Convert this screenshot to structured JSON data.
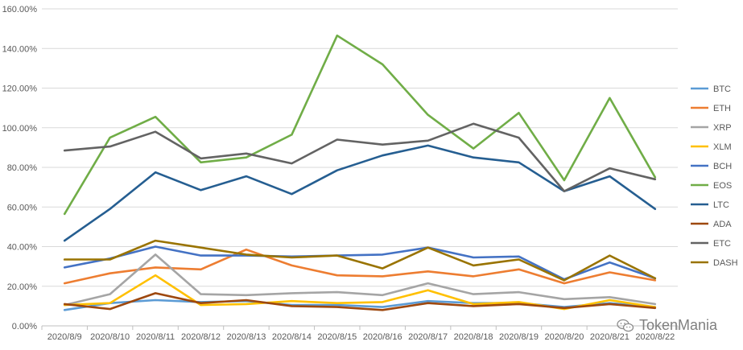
{
  "chart_data": {
    "type": "line",
    "title": "",
    "xlabel": "",
    "ylabel": "",
    "ylim": [
      0,
      1.6
    ],
    "yticks": [
      "0.00%",
      "20.00%",
      "40.00%",
      "60.00%",
      "80.00%",
      "100.00%",
      "120.00%",
      "140.00%",
      "160.00%"
    ],
    "categories": [
      "2020/8/9",
      "2020/8/10",
      "2020/8/11",
      "2020/8/12",
      "2020/8/13",
      "2020/8/14",
      "2020/8/15",
      "2020/8/16",
      "2020/8/17",
      "2020/8/18",
      "2020/8/19",
      "2020/8/20",
      "2020/8/21",
      "2020/8/22"
    ],
    "grid": true,
    "legend_position": "right",
    "series": [
      {
        "name": "BTC",
        "color": "#5B9BD5",
        "values": [
          0.08,
          0.115,
          0.13,
          0.12,
          0.125,
          0.105,
          0.105,
          0.095,
          0.125,
          0.115,
          0.115,
          0.095,
          0.115,
          0.095
        ]
      },
      {
        "name": "ETH",
        "color": "#ED7D31",
        "values": [
          0.215,
          0.265,
          0.295,
          0.285,
          0.385,
          0.305,
          0.255,
          0.25,
          0.275,
          0.25,
          0.285,
          0.215,
          0.27,
          0.23
        ]
      },
      {
        "name": "XRP",
        "color": "#A5A5A5",
        "values": [
          0.105,
          0.16,
          0.36,
          0.16,
          0.155,
          0.165,
          0.17,
          0.155,
          0.215,
          0.16,
          0.17,
          0.135,
          0.145,
          0.11
        ]
      },
      {
        "name": "XLM",
        "color": "#FFC000",
        "values": [
          0.105,
          0.115,
          0.255,
          0.105,
          0.11,
          0.125,
          0.115,
          0.12,
          0.18,
          0.11,
          0.12,
          0.085,
          0.13,
          0.095
        ]
      },
      {
        "name": "BCH",
        "color": "#4472C4",
        "values": [
          0.295,
          0.34,
          0.4,
          0.355,
          0.355,
          0.35,
          0.355,
          0.36,
          0.395,
          0.345,
          0.35,
          0.235,
          0.32,
          0.24
        ]
      },
      {
        "name": "EOS",
        "color": "#70AD47",
        "values": [
          0.565,
          0.95,
          1.055,
          0.825,
          0.85,
          0.965,
          1.465,
          1.32,
          1.065,
          0.895,
          1.075,
          0.735,
          1.15,
          0.75
        ]
      },
      {
        "name": "LTC",
        "color": "#255E91",
        "values": [
          0.43,
          0.59,
          0.775,
          0.685,
          0.755,
          0.665,
          0.785,
          0.86,
          0.91,
          0.85,
          0.825,
          0.68,
          0.755,
          0.59
        ]
      },
      {
        "name": "ADA",
        "color": "#9E480E",
        "values": [
          0.11,
          0.085,
          0.165,
          0.115,
          0.13,
          0.1,
          0.095,
          0.08,
          0.115,
          0.1,
          0.11,
          0.09,
          0.11,
          0.09
        ]
      },
      {
        "name": "ETC",
        "color": "#636363",
        "values": [
          0.885,
          0.905,
          0.98,
          0.845,
          0.87,
          0.82,
          0.94,
          0.915,
          0.935,
          1.02,
          0.95,
          0.68,
          0.795,
          0.74
        ]
      },
      {
        "name": "DASH",
        "color": "#997300",
        "values": [
          0.335,
          0.335,
          0.43,
          0.395,
          0.36,
          0.345,
          0.355,
          0.29,
          0.395,
          0.305,
          0.335,
          0.23,
          0.355,
          0.24
        ]
      }
    ]
  },
  "watermark": {
    "text": "TokenMania",
    "icon": "wechat-icon"
  }
}
